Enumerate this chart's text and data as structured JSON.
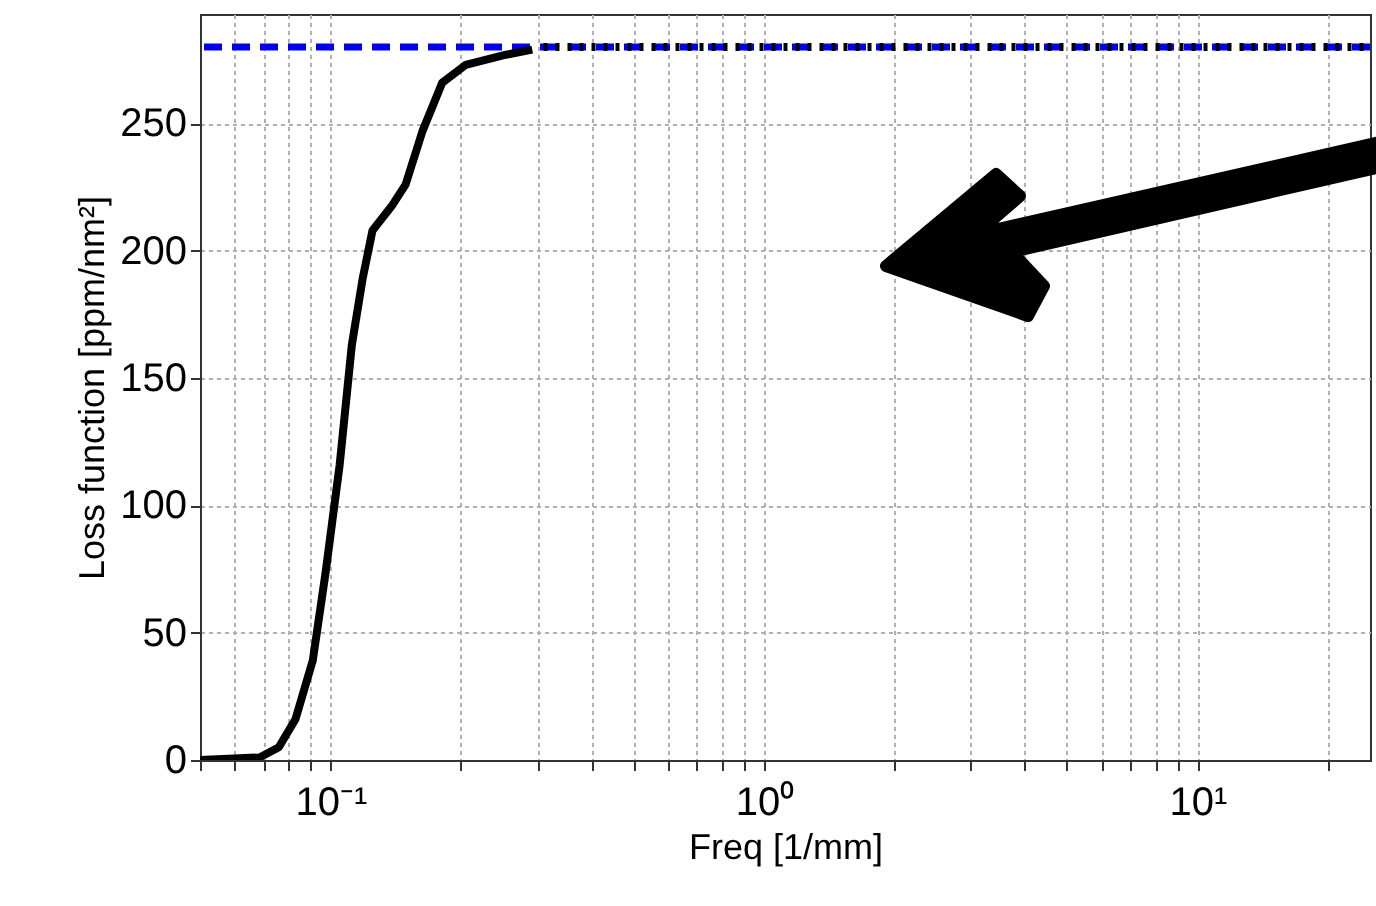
{
  "chart_data": {
    "type": "line",
    "xlabel": "Freq [1/mm]",
    "ylabel": "Loss function [ppm/nm²]",
    "log": "x",
    "grid": true,
    "xlim": [
      0.05,
      25
    ],
    "ylim": [
      0,
      293
    ],
    "xticks": [
      {
        "value": 0.05,
        "label": null
      },
      {
        "value": 0.06,
        "label": null
      },
      {
        "value": 0.07,
        "label": null
      },
      {
        "value": 0.08,
        "label": null
      },
      {
        "value": 0.09,
        "label": null
      },
      {
        "value": 0.1,
        "label": "10⁻¹"
      },
      {
        "value": 0.2,
        "label": null
      },
      {
        "value": 0.3,
        "label": null
      },
      {
        "value": 0.4,
        "label": null
      },
      {
        "value": 0.5,
        "label": null
      },
      {
        "value": 0.6,
        "label": null
      },
      {
        "value": 0.7,
        "label": null
      },
      {
        "value": 0.8,
        "label": null
      },
      {
        "value": 0.9,
        "label": null
      },
      {
        "value": 1,
        "label": "10⁰"
      },
      {
        "value": 2,
        "label": null
      },
      {
        "value": 3,
        "label": null
      },
      {
        "value": 4,
        "label": null
      },
      {
        "value": 5,
        "label": null
      },
      {
        "value": 6,
        "label": null
      },
      {
        "value": 7,
        "label": null
      },
      {
        "value": 8,
        "label": null
      },
      {
        "value": 9,
        "label": null
      },
      {
        "value": 10,
        "label": "10¹"
      },
      {
        "value": 20,
        "label": null
      }
    ],
    "yticks": [
      0,
      50,
      100,
      150,
      200,
      250
    ],
    "ref_lines": [
      {
        "axis": "y",
        "value": 280,
        "color": "#0000ee",
        "line_style": "dashed"
      }
    ],
    "series": [
      {
        "color": "#000000",
        "line_style": "solid",
        "x": [
          0.05,
          0.0686,
          0.076,
          0.083,
          0.091,
          0.0975,
          0.105,
          0.112,
          0.1186,
          0.125,
          0.139,
          0.149,
          0.163,
          0.181,
          0.205,
          0.254,
          0.292
        ],
        "values": [
          0,
          1,
          5,
          16,
          39,
          74,
          116,
          163,
          189,
          208,
          218,
          226,
          247,
          266,
          273,
          277,
          279
        ]
      },
      {
        "color": "#000000",
        "line_style": "dotted",
        "x": [
          0.31,
          25
        ],
        "values": [
          280,
          280
        ]
      }
    ]
  }
}
